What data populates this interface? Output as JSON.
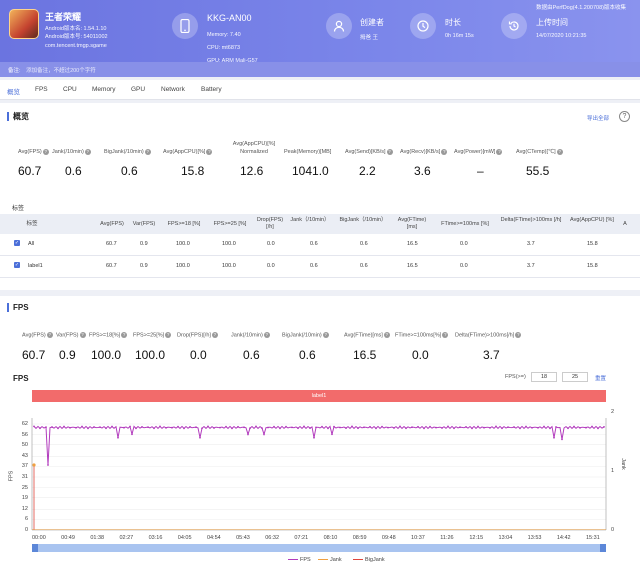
{
  "app": {
    "name": "王者荣耀",
    "version_line1": "Android版本名: 1.54.1.10",
    "version_line2": "Android版本号: 54011002",
    "package": "com.tencent.tmgp.sgame"
  },
  "device": {
    "name": "KKG-AN00",
    "memory": "Memory: 7.40",
    "cpu": "CPU: mt6873",
    "gpu": "GPU: ARM Mali-G57"
  },
  "creator": {
    "label": "创建者",
    "value": "拇爸 王"
  },
  "duration": {
    "label": "时长",
    "value": "0h 16m 15s"
  },
  "upload": {
    "label": "上传时间",
    "value": "14/07/2020 10:21:35"
  },
  "credit": "数据由PerfDog(4.1.200708)版本收集",
  "note": {
    "label": "备注:",
    "placeholder": "添加备注，不超过200个字符"
  },
  "tabs": [
    "概览",
    "FPS",
    "CPU",
    "Memory",
    "GPU",
    "Network",
    "Battery"
  ],
  "overview": {
    "title": "概览",
    "export": "导出全部",
    "stats": [
      {
        "label": "Avg(FPS)",
        "value": "60.7"
      },
      {
        "label": "Jank(/10min)",
        "value": "0.6"
      },
      {
        "label": "BigJank(/10min)",
        "value": "0.6"
      },
      {
        "label": "Avg(AppCPU)[%]",
        "value": "15.8"
      },
      {
        "label": "Avg(AppCPU)[%] Normalized",
        "value": "12.6"
      },
      {
        "label": "Peak(Memory)[MB]",
        "value": "1041.0"
      },
      {
        "label": "Avg(Send)[KB/s]",
        "value": "2.2"
      },
      {
        "label": "Avg(Recv)[KB/s]",
        "value": "3.6"
      },
      {
        "label": "Avg(Power)[mW]",
        "value": "–"
      },
      {
        "label": "Avg(CTemp)[℃]",
        "value": "55.5"
      }
    ]
  },
  "tags": {
    "title": "标签",
    "headers": [
      "标签",
      "Avg(FPS)",
      "Var(FPS)",
      "FPS>=18 [%]",
      "FPS>=25 [%]",
      "Drop(FPS) [/h]",
      "Jank（/10min）",
      "BigJank（/10min）",
      "Avg(FTime) [ms]",
      "FTime>=100ms [%]",
      "Delta(FTime)>100ms [/h]",
      "Avg(AppCPU) [%]",
      "A"
    ],
    "rows": [
      [
        "All",
        "60.7",
        "0.9",
        "100.0",
        "100.0",
        "0.0",
        "0.6",
        "0.6",
        "16.5",
        "0.0",
        "3.7",
        "15.8"
      ],
      [
        "label1",
        "60.7",
        "0.9",
        "100.0",
        "100.0",
        "0.0",
        "0.6",
        "0.6",
        "16.5",
        "0.0",
        "3.7",
        "15.8"
      ]
    ]
  },
  "fps_section": {
    "title": "FPS",
    "stats": [
      {
        "label": "Avg(FPS)",
        "value": "60.7"
      },
      {
        "label": "Var(FPS)",
        "value": "0.9"
      },
      {
        "label": "FPS>=18[%]",
        "value": "100.0"
      },
      {
        "label": "FPS>=25[%]",
        "value": "100.0"
      },
      {
        "label": "Drop(FPS)[/h]",
        "value": "0.0"
      },
      {
        "label": "Jank(/10min)",
        "value": "0.6"
      },
      {
        "label": "BigJank(/10min)",
        "value": "0.6"
      },
      {
        "label": "Avg(FTime)[ms]",
        "value": "16.5"
      },
      {
        "label": "FTime>=100ms[%]",
        "value": "0.0"
      },
      {
        "label": "Delta(FTime)>100ms[/h]",
        "value": "3.7"
      }
    ],
    "chart_title": "FPS",
    "fps_ge_label": "FPS(>=)",
    "fps_ge_1": "18",
    "fps_ge_2": "25",
    "reset": "重置",
    "label_bar": "label1"
  },
  "chart_data": {
    "type": "line",
    "ylabel": "FPS",
    "y2label": "Jank",
    "ylim": [
      0,
      62
    ],
    "y_ticks": [
      "62",
      "56",
      "50",
      "43",
      "37",
      "31",
      "25",
      "19",
      "12",
      "6",
      "0"
    ],
    "y2_ticks": [
      "2",
      "1",
      "0"
    ],
    "x_ticks": [
      "00:00",
      "00:49",
      "01:38",
      "02:27",
      "03:16",
      "04:05",
      "04:54",
      "05:43",
      "06:32",
      "07:21",
      "08:10",
      "08:59",
      "09:48",
      "10:37",
      "11:26",
      "12:15",
      "13:04",
      "13:53",
      "14:42",
      "15:31"
    ],
    "fps_baseline": 60,
    "fps_dips": [
      [
        0.2,
        38
      ],
      [
        2.2,
        54
      ],
      [
        2.6,
        56
      ],
      [
        4.5,
        54
      ],
      [
        5.8,
        56
      ],
      [
        6.3,
        56
      ],
      [
        7.7,
        54
      ],
      [
        8.2,
        56
      ],
      [
        14.4,
        54
      ],
      [
        14.6,
        53
      ]
    ],
    "legend": [
      "FPS",
      "Jank",
      "BigJank"
    ],
    "colors": {
      "FPS": "#b23bbd",
      "Jank": "#f0a040",
      "BigJank": "#e0463c"
    }
  }
}
